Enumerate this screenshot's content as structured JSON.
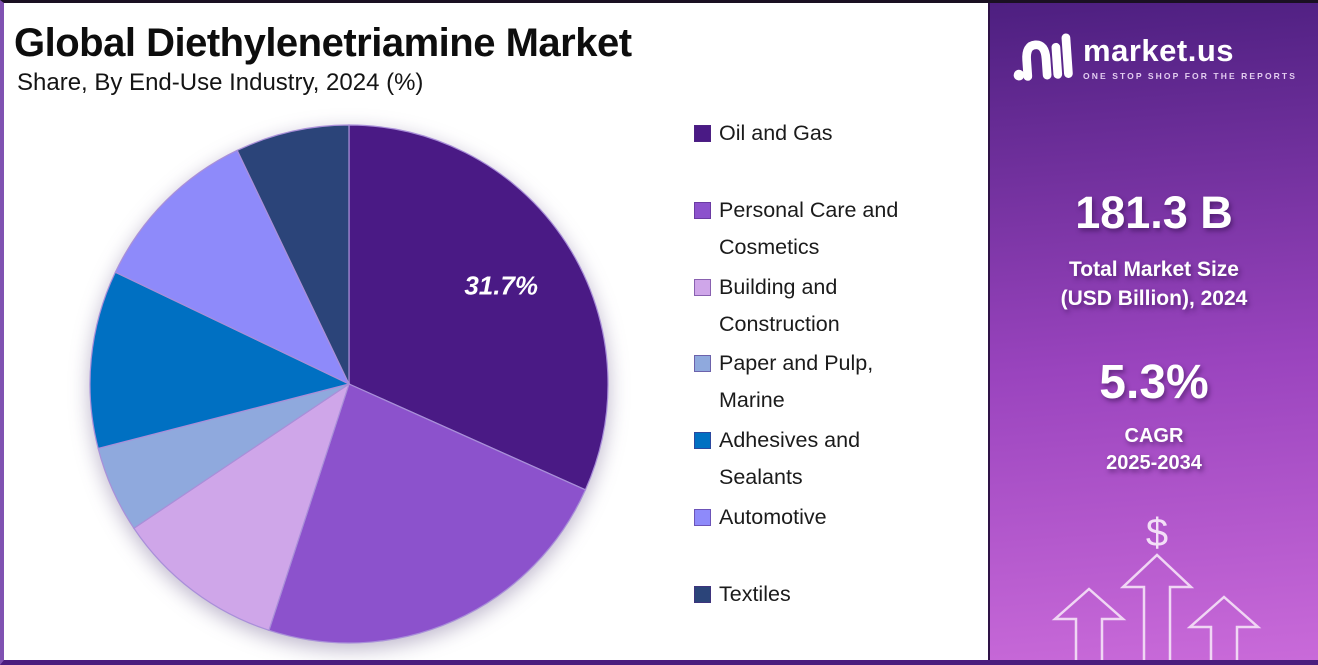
{
  "page": {
    "title": "Global Diethylenetriamine Market",
    "subtitle": "Share, By End-Use Industry, 2024 (%)",
    "colors": {
      "frame_border": "#4A1D7E",
      "background": "#FFFFFF"
    }
  },
  "chart_data": {
    "type": "pie",
    "title": "Global Diethylenetriamine Market",
    "subtitle": "Share, By End-Use Industry, 2024 (%)",
    "unit": "%",
    "start_angle_deg": 0,
    "direction": "clockwise",
    "legend_position": "right",
    "slices": [
      {
        "label": "Oil and Gas",
        "value": 31.7,
        "value_label": "31.7%",
        "color": "#4A1A85"
      },
      {
        "label": "Personal Care and Cosmetics",
        "value": 23.3,
        "color": "#8C52CC"
      },
      {
        "label": "Building and Construction",
        "value": 10.6,
        "color": "#CFA6E9"
      },
      {
        "label": "Paper and Pulp, Marine",
        "value": 5.4,
        "color": "#8FA9DD"
      },
      {
        "label": "Adhesives and Sealants",
        "value": 11.1,
        "color": "#0070C2"
      },
      {
        "label": "Automotive",
        "value": 10.8,
        "color": "#8E8AFA"
      },
      {
        "label": "Textiles",
        "value": 7.1,
        "color": "#2B4479"
      }
    ]
  },
  "legend": {
    "items": [
      {
        "lines": [
          "Oil and Gas",
          ""
        ]
      },
      {
        "lines": [
          "Personal Care and",
          "Cosmetics"
        ]
      },
      {
        "lines": [
          "Building and",
          "Construction"
        ]
      },
      {
        "lines": [
          "Paper and Pulp,",
          "Marine"
        ]
      },
      {
        "lines": [
          "Adhesives and",
          "Sealants"
        ]
      },
      {
        "lines": [
          "Automotive",
          ""
        ]
      },
      {
        "lines": [
          "Textiles",
          ""
        ]
      }
    ]
  },
  "sidebar": {
    "logo": {
      "text": "market.us",
      "tagline": "ONE STOP SHOP FOR THE REPORTS"
    },
    "market_size": {
      "value": "181.3 B",
      "label_line1": "Total Market Size",
      "label_line2": "(USD Billion), 2024"
    },
    "cagr": {
      "value": "5.3%",
      "label_line1": "CAGR",
      "label_line2": "2025-2034"
    },
    "dollar_symbol": "$",
    "colors": {
      "gradient_top": "#4D1F80",
      "gradient_mid": "#9A44BE",
      "gradient_bottom": "#C96AD9"
    }
  }
}
